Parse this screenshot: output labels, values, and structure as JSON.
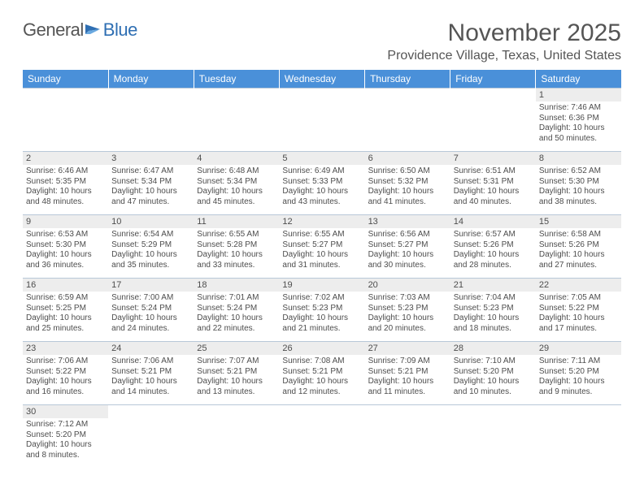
{
  "logo": {
    "text1": "General",
    "text2": "Blue"
  },
  "title": "November 2025",
  "location": "Providence Village, Texas, United States",
  "colors": {
    "header_bg": "#4a90d9",
    "header_text": "#ffffff",
    "daynum_bg": "#ededed",
    "text": "#4d4d4d",
    "border": "#b8c8d8",
    "logo_blue": "#2f6fb3"
  },
  "day_labels": [
    "Sunday",
    "Monday",
    "Tuesday",
    "Wednesday",
    "Thursday",
    "Friday",
    "Saturday"
  ],
  "weeks": [
    [
      {
        "n": "",
        "sr": "",
        "ss": "",
        "dl": "",
        "e": true
      },
      {
        "n": "",
        "sr": "",
        "ss": "",
        "dl": "",
        "e": true
      },
      {
        "n": "",
        "sr": "",
        "ss": "",
        "dl": "",
        "e": true
      },
      {
        "n": "",
        "sr": "",
        "ss": "",
        "dl": "",
        "e": true
      },
      {
        "n": "",
        "sr": "",
        "ss": "",
        "dl": "",
        "e": true
      },
      {
        "n": "",
        "sr": "",
        "ss": "",
        "dl": "",
        "e": true
      },
      {
        "n": "1",
        "sr": "Sunrise: 7:46 AM",
        "ss": "Sunset: 6:36 PM",
        "dl": "Daylight: 10 hours and 50 minutes."
      }
    ],
    [
      {
        "n": "2",
        "sr": "Sunrise: 6:46 AM",
        "ss": "Sunset: 5:35 PM",
        "dl": "Daylight: 10 hours and 48 minutes."
      },
      {
        "n": "3",
        "sr": "Sunrise: 6:47 AM",
        "ss": "Sunset: 5:34 PM",
        "dl": "Daylight: 10 hours and 47 minutes."
      },
      {
        "n": "4",
        "sr": "Sunrise: 6:48 AM",
        "ss": "Sunset: 5:34 PM",
        "dl": "Daylight: 10 hours and 45 minutes."
      },
      {
        "n": "5",
        "sr": "Sunrise: 6:49 AM",
        "ss": "Sunset: 5:33 PM",
        "dl": "Daylight: 10 hours and 43 minutes."
      },
      {
        "n": "6",
        "sr": "Sunrise: 6:50 AM",
        "ss": "Sunset: 5:32 PM",
        "dl": "Daylight: 10 hours and 41 minutes."
      },
      {
        "n": "7",
        "sr": "Sunrise: 6:51 AM",
        "ss": "Sunset: 5:31 PM",
        "dl": "Daylight: 10 hours and 40 minutes."
      },
      {
        "n": "8",
        "sr": "Sunrise: 6:52 AM",
        "ss": "Sunset: 5:30 PM",
        "dl": "Daylight: 10 hours and 38 minutes."
      }
    ],
    [
      {
        "n": "9",
        "sr": "Sunrise: 6:53 AM",
        "ss": "Sunset: 5:30 PM",
        "dl": "Daylight: 10 hours and 36 minutes."
      },
      {
        "n": "10",
        "sr": "Sunrise: 6:54 AM",
        "ss": "Sunset: 5:29 PM",
        "dl": "Daylight: 10 hours and 35 minutes."
      },
      {
        "n": "11",
        "sr": "Sunrise: 6:55 AM",
        "ss": "Sunset: 5:28 PM",
        "dl": "Daylight: 10 hours and 33 minutes."
      },
      {
        "n": "12",
        "sr": "Sunrise: 6:55 AM",
        "ss": "Sunset: 5:27 PM",
        "dl": "Daylight: 10 hours and 31 minutes."
      },
      {
        "n": "13",
        "sr": "Sunrise: 6:56 AM",
        "ss": "Sunset: 5:27 PM",
        "dl": "Daylight: 10 hours and 30 minutes."
      },
      {
        "n": "14",
        "sr": "Sunrise: 6:57 AM",
        "ss": "Sunset: 5:26 PM",
        "dl": "Daylight: 10 hours and 28 minutes."
      },
      {
        "n": "15",
        "sr": "Sunrise: 6:58 AM",
        "ss": "Sunset: 5:26 PM",
        "dl": "Daylight: 10 hours and 27 minutes."
      }
    ],
    [
      {
        "n": "16",
        "sr": "Sunrise: 6:59 AM",
        "ss": "Sunset: 5:25 PM",
        "dl": "Daylight: 10 hours and 25 minutes."
      },
      {
        "n": "17",
        "sr": "Sunrise: 7:00 AM",
        "ss": "Sunset: 5:24 PM",
        "dl": "Daylight: 10 hours and 24 minutes."
      },
      {
        "n": "18",
        "sr": "Sunrise: 7:01 AM",
        "ss": "Sunset: 5:24 PM",
        "dl": "Daylight: 10 hours and 22 minutes."
      },
      {
        "n": "19",
        "sr": "Sunrise: 7:02 AM",
        "ss": "Sunset: 5:23 PM",
        "dl": "Daylight: 10 hours and 21 minutes."
      },
      {
        "n": "20",
        "sr": "Sunrise: 7:03 AM",
        "ss": "Sunset: 5:23 PM",
        "dl": "Daylight: 10 hours and 20 minutes."
      },
      {
        "n": "21",
        "sr": "Sunrise: 7:04 AM",
        "ss": "Sunset: 5:23 PM",
        "dl": "Daylight: 10 hours and 18 minutes."
      },
      {
        "n": "22",
        "sr": "Sunrise: 7:05 AM",
        "ss": "Sunset: 5:22 PM",
        "dl": "Daylight: 10 hours and 17 minutes."
      }
    ],
    [
      {
        "n": "23",
        "sr": "Sunrise: 7:06 AM",
        "ss": "Sunset: 5:22 PM",
        "dl": "Daylight: 10 hours and 16 minutes."
      },
      {
        "n": "24",
        "sr": "Sunrise: 7:06 AM",
        "ss": "Sunset: 5:21 PM",
        "dl": "Daylight: 10 hours and 14 minutes."
      },
      {
        "n": "25",
        "sr": "Sunrise: 7:07 AM",
        "ss": "Sunset: 5:21 PM",
        "dl": "Daylight: 10 hours and 13 minutes."
      },
      {
        "n": "26",
        "sr": "Sunrise: 7:08 AM",
        "ss": "Sunset: 5:21 PM",
        "dl": "Daylight: 10 hours and 12 minutes."
      },
      {
        "n": "27",
        "sr": "Sunrise: 7:09 AM",
        "ss": "Sunset: 5:21 PM",
        "dl": "Daylight: 10 hours and 11 minutes."
      },
      {
        "n": "28",
        "sr": "Sunrise: 7:10 AM",
        "ss": "Sunset: 5:20 PM",
        "dl": "Daylight: 10 hours and 10 minutes."
      },
      {
        "n": "29",
        "sr": "Sunrise: 7:11 AM",
        "ss": "Sunset: 5:20 PM",
        "dl": "Daylight: 10 hours and 9 minutes."
      }
    ],
    [
      {
        "n": "30",
        "sr": "Sunrise: 7:12 AM",
        "ss": "Sunset: 5:20 PM",
        "dl": "Daylight: 10 hours and 8 minutes."
      },
      {
        "n": "",
        "sr": "",
        "ss": "",
        "dl": "",
        "e": true
      },
      {
        "n": "",
        "sr": "",
        "ss": "",
        "dl": "",
        "e": true
      },
      {
        "n": "",
        "sr": "",
        "ss": "",
        "dl": "",
        "e": true
      },
      {
        "n": "",
        "sr": "",
        "ss": "",
        "dl": "",
        "e": true
      },
      {
        "n": "",
        "sr": "",
        "ss": "",
        "dl": "",
        "e": true
      },
      {
        "n": "",
        "sr": "",
        "ss": "",
        "dl": "",
        "e": true
      }
    ]
  ]
}
